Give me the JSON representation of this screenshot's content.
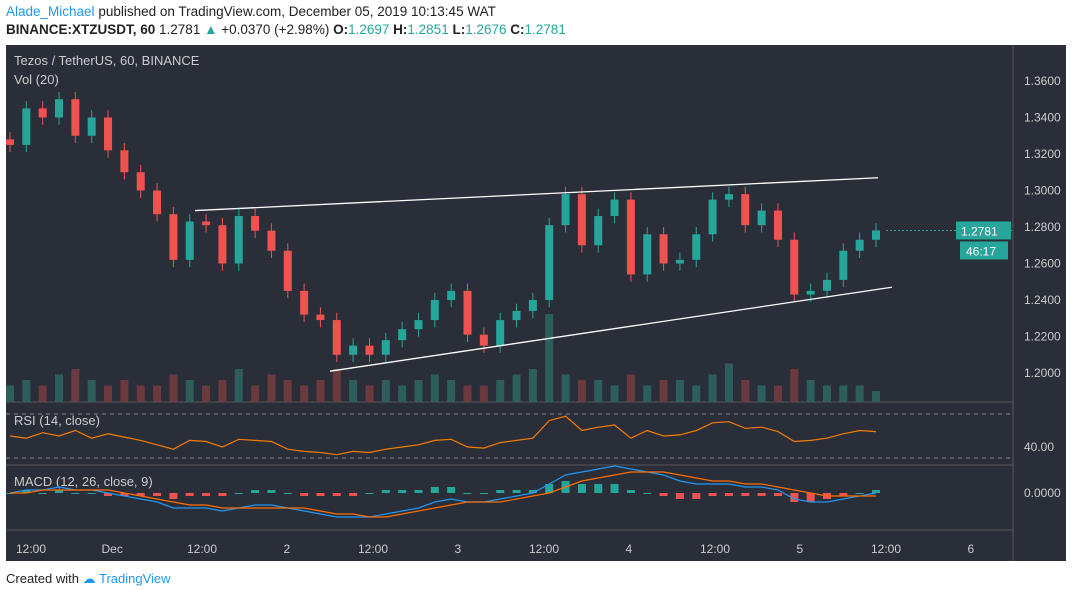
{
  "header": {
    "author": "Alade_Michael",
    "published": "published on TradingView.com, December 05, 2019 10:13:45 WAT",
    "symbol": "BINANCE:XTZUSDT, 60",
    "last": "1.2781",
    "change": "+0.0370 (+2.98%)",
    "o_label": "O:",
    "o": "1.2697",
    "h_label": "H:",
    "h": "1.2851",
    "l_label": "L:",
    "l": "1.2676",
    "c_label": "C:",
    "c": "1.2781"
  },
  "footer": {
    "created_with": "Created with",
    "brand": "TradingView"
  },
  "colors": {
    "bg": "#2a2e39",
    "up": "#26a69a",
    "down": "#ef5350",
    "trend": "#ffffff",
    "rsi": "#f57c00",
    "macd": "#2196f3",
    "signal": "#ff6d00"
  },
  "chart_data": [
    {
      "type": "candlestick",
      "title": "Tezos / TetherUS, 60, BINANCE",
      "volume_label": "Vol (20)",
      "x_tick_labels": [
        "12:00",
        "Dec",
        "12:00",
        "2",
        "12:00",
        "3",
        "12:00",
        "4",
        "12:00",
        "5",
        "12:00",
        "6"
      ],
      "y_ticks": [
        1.2,
        1.22,
        1.24,
        1.26,
        1.28,
        1.3,
        1.32,
        1.34,
        1.36
      ],
      "ylim": [
        1.183,
        1.375
      ],
      "last_price": "1.2781",
      "countdown": "46:17",
      "closes": [
        1.325,
        1.345,
        1.34,
        1.35,
        1.33,
        1.34,
        1.322,
        1.31,
        1.3,
        1.287,
        1.262,
        1.283,
        1.281,
        1.26,
        1.286,
        1.278,
        1.267,
        1.245,
        1.232,
        1.229,
        1.21,
        1.215,
        1.21,
        1.218,
        1.224,
        1.229,
        1.24,
        1.245,
        1.221,
        1.215,
        1.229,
        1.234,
        1.24,
        1.281,
        1.298,
        1.27,
        1.286,
        1.295,
        1.254,
        1.276,
        1.26,
        1.262,
        1.276,
        1.295,
        1.298,
        1.281,
        1.289,
        1.273,
        1.243,
        1.245,
        1.251,
        1.267,
        1.273,
        1.2781
      ],
      "volumes": [
        3,
        4,
        3,
        5,
        6,
        4,
        3,
        4,
        3,
        3,
        5,
        4,
        3,
        4,
        6,
        3,
        5,
        4,
        3,
        4,
        6,
        4,
        3,
        4,
        3,
        4,
        5,
        4,
        3,
        3,
        4,
        5,
        6,
        16,
        5,
        4,
        4,
        3,
        5,
        3,
        4,
        4,
        3,
        5,
        7,
        4,
        3,
        3,
        6,
        4,
        3,
        3,
        3,
        2
      ],
      "trendlines": [
        {
          "from": 1.289,
          "to": 1.307
        },
        {
          "from": 1.201,
          "to": 1.247
        }
      ]
    },
    {
      "type": "line",
      "title": "RSI (14, close)",
      "y_tick_labels": [
        "40.00"
      ],
      "levels": [
        70,
        30
      ],
      "values": [
        50,
        48,
        53,
        50,
        55,
        48,
        52,
        49,
        46,
        42,
        38,
        46,
        45,
        40,
        47,
        46,
        45,
        38,
        36,
        35,
        33,
        36,
        35,
        38,
        40,
        42,
        46,
        47,
        40,
        39,
        44,
        46,
        48,
        64,
        68,
        55,
        58,
        60,
        48,
        55,
        50,
        51,
        55,
        62,
        63,
        57,
        58,
        54,
        45,
        46,
        48,
        52,
        55,
        54
      ]
    },
    {
      "type": "line",
      "title": "MACD (12, 26, close, 9)",
      "y_tick_labels": [
        "0.0000"
      ],
      "macd": [
        0,
        1,
        1,
        2,
        1,
        1,
        0,
        -1,
        -2,
        -3,
        -5,
        -5,
        -5,
        -6,
        -5,
        -4,
        -4,
        -5,
        -6,
        -7,
        -8,
        -8,
        -8,
        -7,
        -6,
        -5,
        -3,
        -2,
        -3,
        -3,
        -2,
        -1,
        0,
        3,
        6,
        7,
        8,
        9,
        8,
        7,
        6,
        4,
        3,
        3,
        3,
        2,
        2,
        1,
        -2,
        -3,
        -3,
        -2,
        -1,
        0
      ],
      "signal": [
        0,
        0,
        1,
        1,
        1,
        1,
        1,
        0,
        -1,
        -2,
        -3,
        -4,
        -4,
        -5,
        -5,
        -5,
        -5,
        -5,
        -5,
        -6,
        -7,
        -7,
        -8,
        -8,
        -7,
        -6,
        -5,
        -4,
        -3,
        -3,
        -3,
        -2,
        -1,
        0,
        2,
        4,
        5,
        6,
        7,
        7,
        7,
        6,
        5,
        4,
        4,
        3,
        3,
        2,
        1,
        0,
        -1,
        -1,
        -1,
        -1
      ]
    }
  ]
}
